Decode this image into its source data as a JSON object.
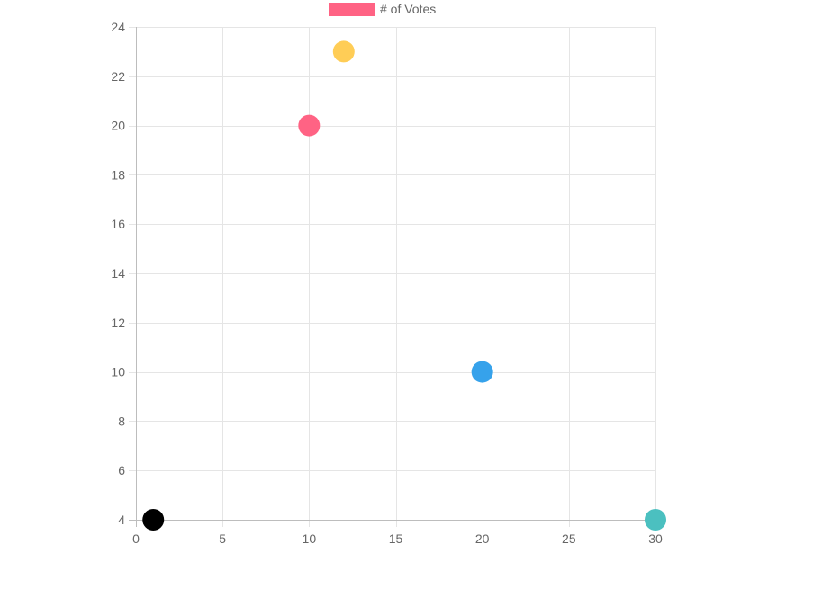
{
  "chart_data": {
    "type": "scatter",
    "series": [
      {
        "name": "# of Votes",
        "legend_color": "#ff6384",
        "points": [
          {
            "x": 10,
            "y": 20,
            "color": "#ff6384"
          },
          {
            "x": 12,
            "y": 23,
            "color": "#ffcd56"
          },
          {
            "x": 20,
            "y": 10,
            "color": "#36a2eb"
          },
          {
            "x": 30,
            "y": 4,
            "color": "#4bc0c0"
          },
          {
            "x": 1,
            "y": 4,
            "color": "#000000"
          }
        ]
      }
    ],
    "xlim": [
      0,
      30
    ],
    "ylim": [
      4,
      24
    ],
    "x_ticks": [
      0,
      5,
      10,
      15,
      20,
      25,
      30
    ],
    "y_ticks": [
      4,
      6,
      8,
      10,
      12,
      14,
      16,
      18,
      20,
      22,
      24
    ],
    "grid": true,
    "legend_position": "top",
    "grid_color": "#e5e5e5",
    "axis_color": "#bdbdbd",
    "label_color": "#666666"
  }
}
